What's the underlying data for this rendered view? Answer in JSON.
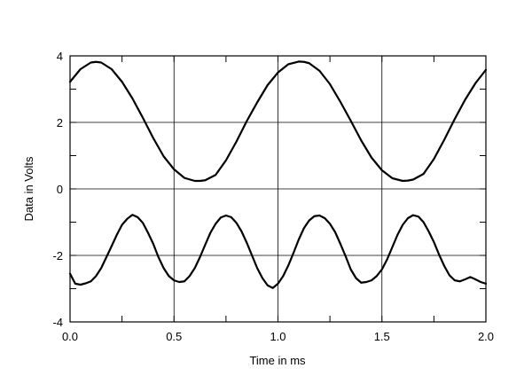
{
  "chart_data": {
    "type": "line",
    "title": "",
    "xlabel": "Time in ms",
    "ylabel": "Data in Volts",
    "xlim": [
      0.0,
      2.0
    ],
    "ylim": [
      -4,
      4
    ],
    "x_ticks": [
      "0.0",
      "0.5",
      "1.0",
      "1.5",
      "2.0"
    ],
    "y_ticks": [
      "-4",
      "-2",
      "0",
      "2",
      "4"
    ],
    "grid": true,
    "legend": "none",
    "series": [
      {
        "x": [
          0.0,
          0.05,
          0.1,
          0.125,
          0.15,
          0.2,
          0.25,
          0.3,
          0.35,
          0.4,
          0.45,
          0.5,
          0.55,
          0.6,
          0.625,
          0.65,
          0.7,
          0.75,
          0.8,
          0.85,
          0.9,
          0.95,
          1.0,
          1.05,
          1.1,
          1.125,
          1.15,
          1.2,
          1.25,
          1.3,
          1.35,
          1.4,
          1.45,
          1.5,
          1.55,
          1.6,
          1.625,
          1.65,
          1.7,
          1.75,
          1.8,
          1.85,
          1.9,
          1.95,
          2.0
        ],
        "values": [
          3.22,
          3.6,
          3.8,
          3.82,
          3.8,
          3.6,
          3.22,
          2.72,
          2.14,
          1.53,
          0.98,
          0.59,
          0.33,
          0.24,
          0.24,
          0.26,
          0.42,
          0.86,
          1.42,
          2.04,
          2.6,
          3.12,
          3.5,
          3.75,
          3.83,
          3.82,
          3.78,
          3.55,
          3.15,
          2.62,
          2.05,
          1.46,
          0.94,
          0.56,
          0.32,
          0.24,
          0.25,
          0.28,
          0.45,
          0.9,
          1.48,
          2.1,
          2.68,
          3.18,
          3.58
        ]
      },
      {
        "x": [
          0.0,
          0.025,
          0.05,
          0.075,
          0.1,
          0.125,
          0.15,
          0.175,
          0.2,
          0.225,
          0.25,
          0.275,
          0.3,
          0.325,
          0.35,
          0.375,
          0.4,
          0.425,
          0.45,
          0.475,
          0.5,
          0.525,
          0.55,
          0.575,
          0.6,
          0.625,
          0.65,
          0.675,
          0.7,
          0.725,
          0.75,
          0.775,
          0.8,
          0.825,
          0.85,
          0.875,
          0.9,
          0.925,
          0.95,
          0.975,
          1.0,
          1.025,
          1.05,
          1.075,
          1.1,
          1.125,
          1.15,
          1.175,
          1.2,
          1.225,
          1.25,
          1.275,
          1.3,
          1.325,
          1.35,
          1.375,
          1.4,
          1.425,
          1.45,
          1.475,
          1.5,
          1.525,
          1.55,
          1.575,
          1.6,
          1.625,
          1.65,
          1.675,
          1.7,
          1.725,
          1.75,
          1.775,
          1.8,
          1.825,
          1.85,
          1.875,
          1.9,
          1.925,
          1.95,
          1.975,
          2.0
        ],
        "values": [
          -2.55,
          -2.85,
          -2.88,
          -2.84,
          -2.78,
          -2.62,
          -2.38,
          -2.05,
          -1.72,
          -1.38,
          -1.08,
          -0.9,
          -0.78,
          -0.85,
          -1.02,
          -1.32,
          -1.65,
          -2.05,
          -2.38,
          -2.62,
          -2.75,
          -2.8,
          -2.78,
          -2.62,
          -2.38,
          -2.05,
          -1.68,
          -1.32,
          -1.05,
          -0.86,
          -0.8,
          -0.85,
          -1.02,
          -1.28,
          -1.62,
          -2.0,
          -2.38,
          -2.68,
          -2.9,
          -2.98,
          -2.85,
          -2.62,
          -2.3,
          -1.92,
          -1.52,
          -1.18,
          -0.95,
          -0.82,
          -0.8,
          -0.88,
          -1.05,
          -1.3,
          -1.65,
          -2.02,
          -2.42,
          -2.68,
          -2.82,
          -2.8,
          -2.75,
          -2.62,
          -2.42,
          -2.12,
          -1.75,
          -1.38,
          -1.08,
          -0.88,
          -0.79,
          -0.83,
          -1.0,
          -1.28,
          -1.6,
          -1.98,
          -2.32,
          -2.6,
          -2.75,
          -2.78,
          -2.72,
          -2.65,
          -2.72,
          -2.8,
          -2.85
        ]
      }
    ]
  }
}
